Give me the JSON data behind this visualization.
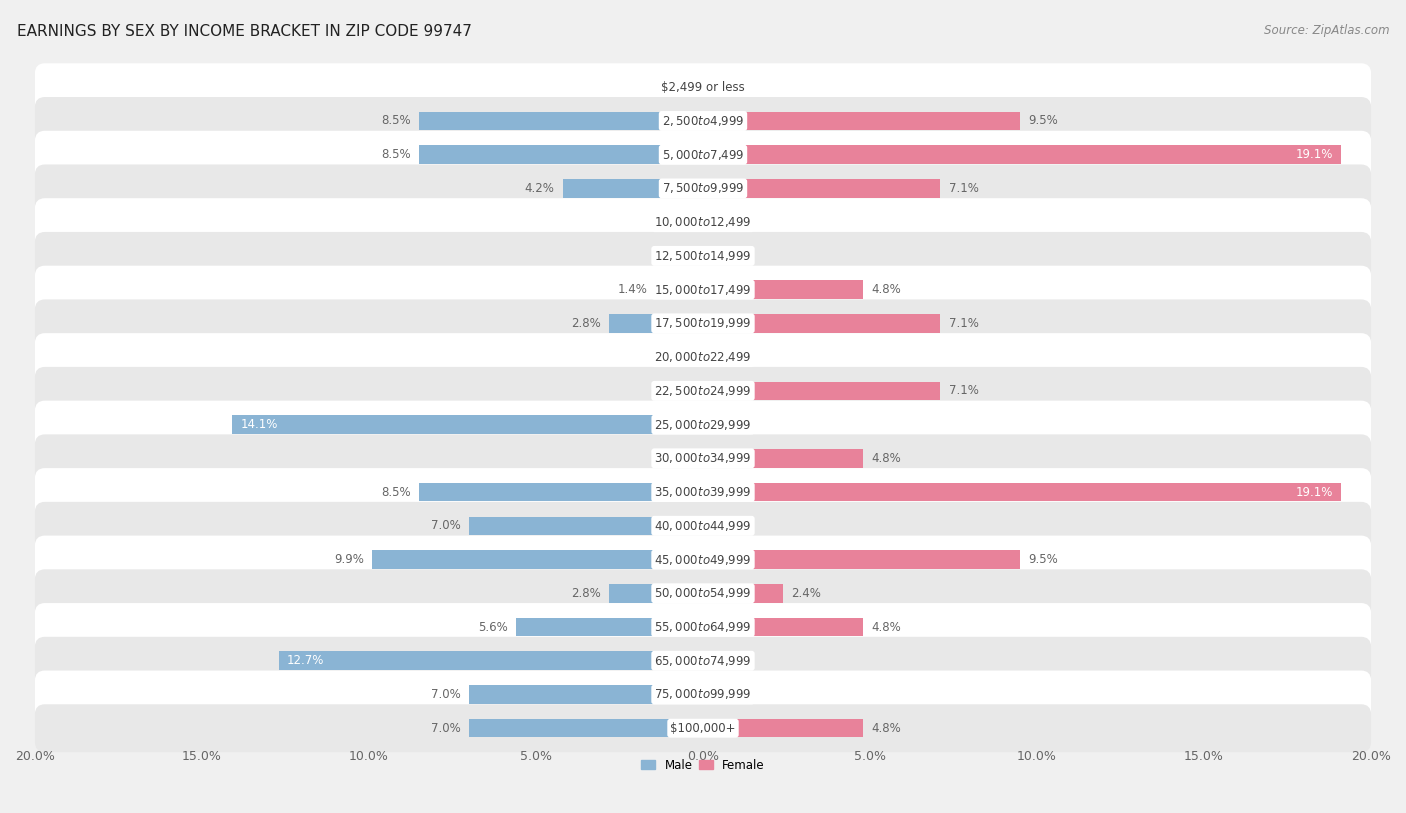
{
  "title": "EARNINGS BY SEX BY INCOME BRACKET IN ZIP CODE 99747",
  "source": "Source: ZipAtlas.com",
  "categories": [
    "$2,499 or less",
    "$2,500 to $4,999",
    "$5,000 to $7,499",
    "$7,500 to $9,999",
    "$10,000 to $12,499",
    "$12,500 to $14,999",
    "$15,000 to $17,499",
    "$17,500 to $19,999",
    "$20,000 to $22,499",
    "$22,500 to $24,999",
    "$25,000 to $29,999",
    "$30,000 to $34,999",
    "$35,000 to $39,999",
    "$40,000 to $44,999",
    "$45,000 to $49,999",
    "$50,000 to $54,999",
    "$55,000 to $64,999",
    "$65,000 to $74,999",
    "$75,000 to $99,999",
    "$100,000+"
  ],
  "male": [
    0.0,
    8.5,
    8.5,
    4.2,
    0.0,
    0.0,
    1.4,
    2.8,
    0.0,
    0.0,
    14.1,
    0.0,
    8.5,
    7.0,
    9.9,
    2.8,
    5.6,
    12.7,
    7.0,
    7.0
  ],
  "female": [
    0.0,
    9.5,
    19.1,
    7.1,
    0.0,
    0.0,
    4.8,
    7.1,
    0.0,
    7.1,
    0.0,
    4.8,
    19.1,
    0.0,
    9.5,
    2.4,
    4.8,
    0.0,
    0.0,
    4.8
  ],
  "male_color": "#8ab4d4",
  "female_color": "#e8829a",
  "male_label_color": "#666666",
  "female_label_color": "#666666",
  "male_label_inside_color": "#ffffff",
  "female_label_inside_color": "#ffffff",
  "xlim": 20.0,
  "background_color": "#f0f0f0",
  "row_color_light": "#ffffff",
  "row_color_dark": "#e8e8e8",
  "title_fontsize": 11,
  "label_fontsize": 8.5,
  "tick_fontsize": 9,
  "bar_height": 0.55,
  "cat_label_fontsize": 8.5
}
